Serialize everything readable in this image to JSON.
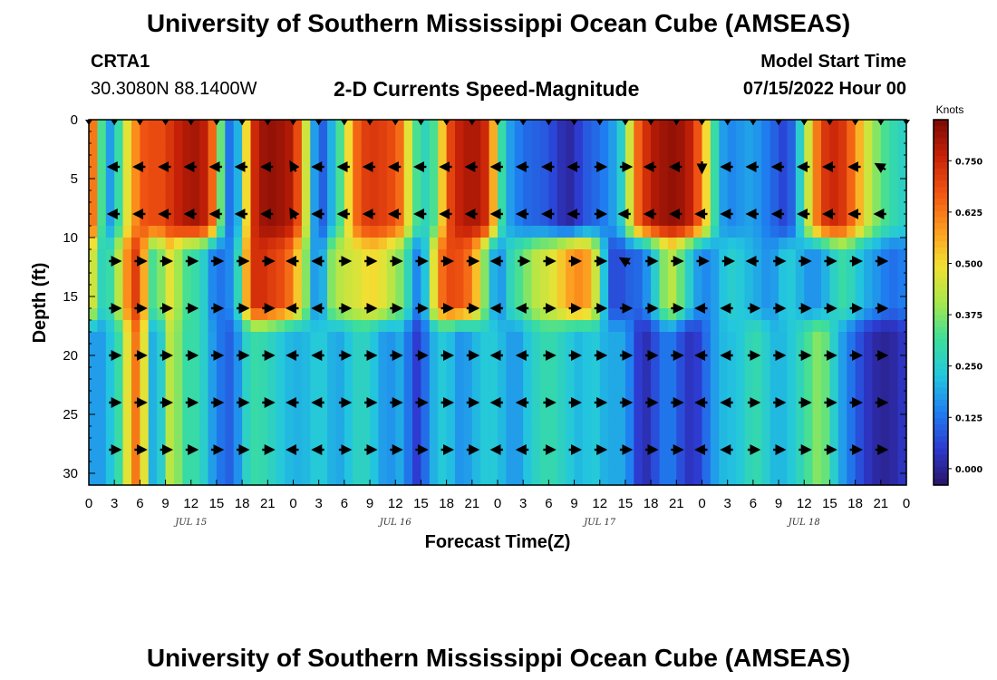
{
  "header": {
    "title": "University of Southern Mississippi Ocean Cube (AMSEAS)",
    "station": "CRTA1",
    "location": "30.3080N  88.1400W",
    "subtitle": "2-D Currents Speed-Magnitude",
    "model_start_label": "Model Start Time",
    "model_start_value": "07/15/2022 Hour 00"
  },
  "footer": {
    "title": "University of Southern Mississippi Ocean Cube (AMSEAS)"
  },
  "colors": {
    "colormap": [
      "#2a1466",
      "#2d3ad0",
      "#1f7ff0",
      "#23c7de",
      "#3dde9a",
      "#a8e84a",
      "#f2e032",
      "#fc9a1e",
      "#f05412",
      "#c82208",
      "#7a0a04"
    ],
    "arrow": "#000000"
  },
  "chart_data": {
    "type": "heatmap",
    "title": "2-D Currents Speed-Magnitude",
    "xlabel": "Forecast Time(Z)",
    "ylabel": "Depth (ft)",
    "x_tick_labels": [
      "0",
      "3",
      "6",
      "9",
      "12",
      "15",
      "18",
      "21",
      "0",
      "3",
      "6",
      "9",
      "12",
      "15",
      "18",
      "21",
      "0",
      "3",
      "6",
      "9",
      "12",
      "15",
      "18",
      "21",
      "0",
      "3",
      "6",
      "9",
      "12",
      "15",
      "18",
      "21",
      "0"
    ],
    "x_range_hours": [
      0,
      96
    ],
    "date_labels": [
      {
        "text": "JUL 15",
        "hour": 12
      },
      {
        "text": "JUL 16",
        "hour": 36
      },
      {
        "text": "JUL 17",
        "hour": 60
      },
      {
        "text": "JUL 18",
        "hour": 84
      }
    ],
    "y_ticks": [
      0,
      5,
      10,
      15,
      20,
      25,
      30
    ],
    "ylim": [
      0,
      31
    ],
    "colorbar": {
      "title": "Knots",
      "ticks": [
        "0.000",
        "0.125",
        "0.250",
        "0.375",
        "0.500",
        "0.625",
        "0.750"
      ],
      "range": [
        -0.04,
        0.85
      ]
    },
    "arrow_depths_ft": [
      4,
      8,
      12,
      16,
      20,
      24,
      28
    ],
    "speed_bands": {
      "description": "Approximate speed (knots) per depth band across forecast hours",
      "depth_breaks_ft": [
        0,
        10,
        17,
        31
      ],
      "hours": [
        0,
        1,
        2,
        3,
        4,
        5,
        6,
        7,
        8,
        9,
        10,
        11,
        12,
        13,
        14,
        15,
        16,
        17,
        18,
        19,
        20,
        21,
        22,
        23,
        24,
        25,
        26,
        27,
        28,
        29,
        30,
        31,
        32,
        33,
        34,
        35,
        36,
        37,
        38,
        39,
        40,
        41,
        42,
        43,
        44,
        45,
        46,
        47,
        48,
        49,
        50,
        51,
        52,
        53,
        54,
        55,
        56,
        57,
        58,
        59,
        60,
        61,
        62,
        63,
        64,
        65,
        66,
        67,
        68,
        69,
        70,
        71,
        72,
        73,
        74,
        75,
        76,
        77,
        78,
        79,
        80,
        81,
        82,
        83,
        84,
        85,
        86,
        87,
        88,
        89,
        90,
        91,
        92,
        93,
        94,
        95,
        96
      ],
      "top": [
        0.75,
        0.5,
        0.15,
        0.2,
        0.4,
        0.55,
        0.65,
        0.7,
        0.68,
        0.7,
        0.75,
        0.78,
        0.8,
        0.8,
        0.75,
        0.55,
        0.15,
        0.1,
        0.3,
        0.7,
        0.8,
        0.82,
        0.82,
        0.8,
        0.78,
        0.6,
        0.3,
        0.05,
        0.15,
        0.25,
        0.4,
        0.6,
        0.7,
        0.72,
        0.72,
        0.7,
        0.68,
        0.6,
        0.35,
        0.3,
        0.25,
        0.4,
        0.65,
        0.75,
        0.78,
        0.8,
        0.78,
        0.72,
        0.4,
        0.2,
        0.15,
        0.12,
        0.1,
        0.1,
        0.08,
        0.05,
        0.0,
        0.02,
        0.08,
        0.1,
        0.12,
        0.15,
        0.2,
        0.3,
        0.6,
        0.7,
        0.78,
        0.8,
        0.82,
        0.82,
        0.8,
        0.75,
        0.6,
        0.4,
        0.2,
        0.15,
        0.15,
        0.18,
        0.18,
        0.15,
        0.12,
        0.08,
        0.05,
        0.15,
        0.35,
        0.55,
        0.7,
        0.75,
        0.75,
        0.7,
        0.6,
        0.5,
        0.4,
        0.35,
        0.3,
        0.28,
        0.25
      ],
      "middle": [
        0.6,
        0.3,
        0.25,
        0.35,
        0.5,
        0.7,
        0.72,
        0.4,
        0.25,
        0.5,
        0.45,
        0.35,
        0.3,
        0.3,
        0.2,
        0.1,
        0.15,
        0.15,
        0.4,
        0.72,
        0.75,
        0.72,
        0.7,
        0.68,
        0.6,
        0.45,
        0.3,
        0.05,
        0.35,
        0.4,
        0.45,
        0.45,
        0.48,
        0.5,
        0.5,
        0.45,
        0.4,
        0.35,
        0.2,
        0.1,
        0.35,
        0.6,
        0.68,
        0.7,
        0.66,
        0.62,
        0.45,
        0.3,
        0.1,
        0.25,
        0.3,
        0.35,
        0.4,
        0.45,
        0.45,
        0.5,
        0.55,
        0.6,
        0.6,
        0.55,
        0.35,
        0.1,
        0.05,
        0.1,
        0.1,
        0.12,
        0.2,
        0.3,
        0.45,
        0.4,
        0.3,
        0.2,
        0.15,
        0.15,
        0.2,
        0.25,
        0.25,
        0.22,
        0.2,
        0.18,
        0.15,
        0.2,
        0.25,
        0.22,
        0.18,
        0.15,
        0.18,
        0.22,
        0.3,
        0.3,
        0.25,
        0.2,
        0.18,
        0.15,
        0.12,
        0.12,
        0.15
      ],
      "bottom": [
        0.2,
        0.15,
        0.2,
        0.25,
        0.35,
        0.6,
        0.65,
        0.3,
        0.1,
        0.4,
        0.45,
        0.3,
        0.3,
        0.3,
        0.2,
        0.15,
        0.1,
        0.1,
        0.22,
        0.3,
        0.3,
        0.28,
        0.25,
        0.22,
        0.2,
        0.2,
        0.22,
        0.25,
        0.22,
        0.18,
        0.2,
        0.25,
        0.28,
        0.25,
        0.2,
        0.15,
        0.18,
        0.2,
        0.05,
        0.05,
        0.18,
        0.22,
        0.25,
        0.18,
        0.15,
        0.2,
        0.22,
        0.25,
        0.22,
        0.2,
        0.15,
        0.2,
        0.25,
        0.28,
        0.3,
        0.28,
        0.25,
        0.22,
        0.2,
        0.25,
        0.22,
        0.18,
        0.2,
        0.18,
        0.1,
        0.0,
        0.05,
        0.1,
        0.15,
        0.1,
        0.05,
        0.02,
        0.08,
        0.15,
        0.2,
        0.22,
        0.22,
        0.25,
        0.3,
        0.28,
        0.22,
        0.2,
        0.22,
        0.25,
        0.3,
        0.35,
        0.4,
        0.3,
        0.2,
        0.15,
        0.1,
        0.05,
        0.02,
        0.0,
        0.0,
        0.02,
        0.05
      ]
    },
    "arrow_directions_deg": {
      "description": "Arrow bearing (math degrees, 0 = pointing right/east) per depth row at 3-hour intervals (33 columns)",
      "rows": [
        [
          180,
          180,
          180,
          180,
          180,
          180,
          180,
          180,
          120,
          180,
          180,
          180,
          180,
          180,
          180,
          180,
          180,
          180,
          180,
          180,
          0,
          0,
          180,
          180,
          270,
          180,
          180,
          180,
          180,
          180,
          180,
          150,
          180
        ],
        [
          180,
          180,
          180,
          180,
          180,
          180,
          180,
          180,
          120,
          180,
          180,
          180,
          180,
          180,
          180,
          180,
          180,
          180,
          180,
          180,
          0,
          180,
          180,
          180,
          180,
          180,
          180,
          180,
          180,
          180,
          180,
          180,
          0
        ],
        [
          0,
          0,
          0,
          0,
          0,
          0,
          0,
          0,
          180,
          180,
          0,
          0,
          0,
          0,
          0,
          0,
          180,
          0,
          0,
          0,
          0,
          150,
          0,
          0,
          0,
          0,
          180,
          0,
          0,
          0,
          0,
          0,
          0
        ],
        [
          0,
          0,
          0,
          0,
          0,
          0,
          0,
          0,
          180,
          180,
          0,
          0,
          0,
          0,
          0,
          0,
          180,
          180,
          0,
          0,
          0,
          0,
          0,
          0,
          180,
          180,
          0,
          0,
          0,
          0,
          0,
          0,
          0
        ],
        [
          0,
          0,
          0,
          0,
          0,
          0,
          0,
          0,
          180,
          180,
          0,
          0,
          0,
          0,
          0,
          0,
          180,
          180,
          0,
          0,
          0,
          0,
          0,
          0,
          180,
          180,
          0,
          0,
          0,
          0,
          0,
          0,
          0
        ],
        [
          0,
          0,
          0,
          0,
          0,
          0,
          0,
          0,
          180,
          180,
          0,
          0,
          0,
          0,
          0,
          0,
          180,
          180,
          0,
          0,
          0,
          0,
          0,
          0,
          180,
          180,
          0,
          0,
          0,
          0,
          0,
          0,
          0
        ],
        [
          0,
          0,
          0,
          0,
          0,
          0,
          0,
          0,
          180,
          180,
          0,
          0,
          0,
          0,
          0,
          0,
          180,
          180,
          0,
          0,
          0,
          0,
          0,
          0,
          180,
          180,
          0,
          0,
          0,
          0,
          0,
          0,
          0
        ]
      ]
    }
  }
}
